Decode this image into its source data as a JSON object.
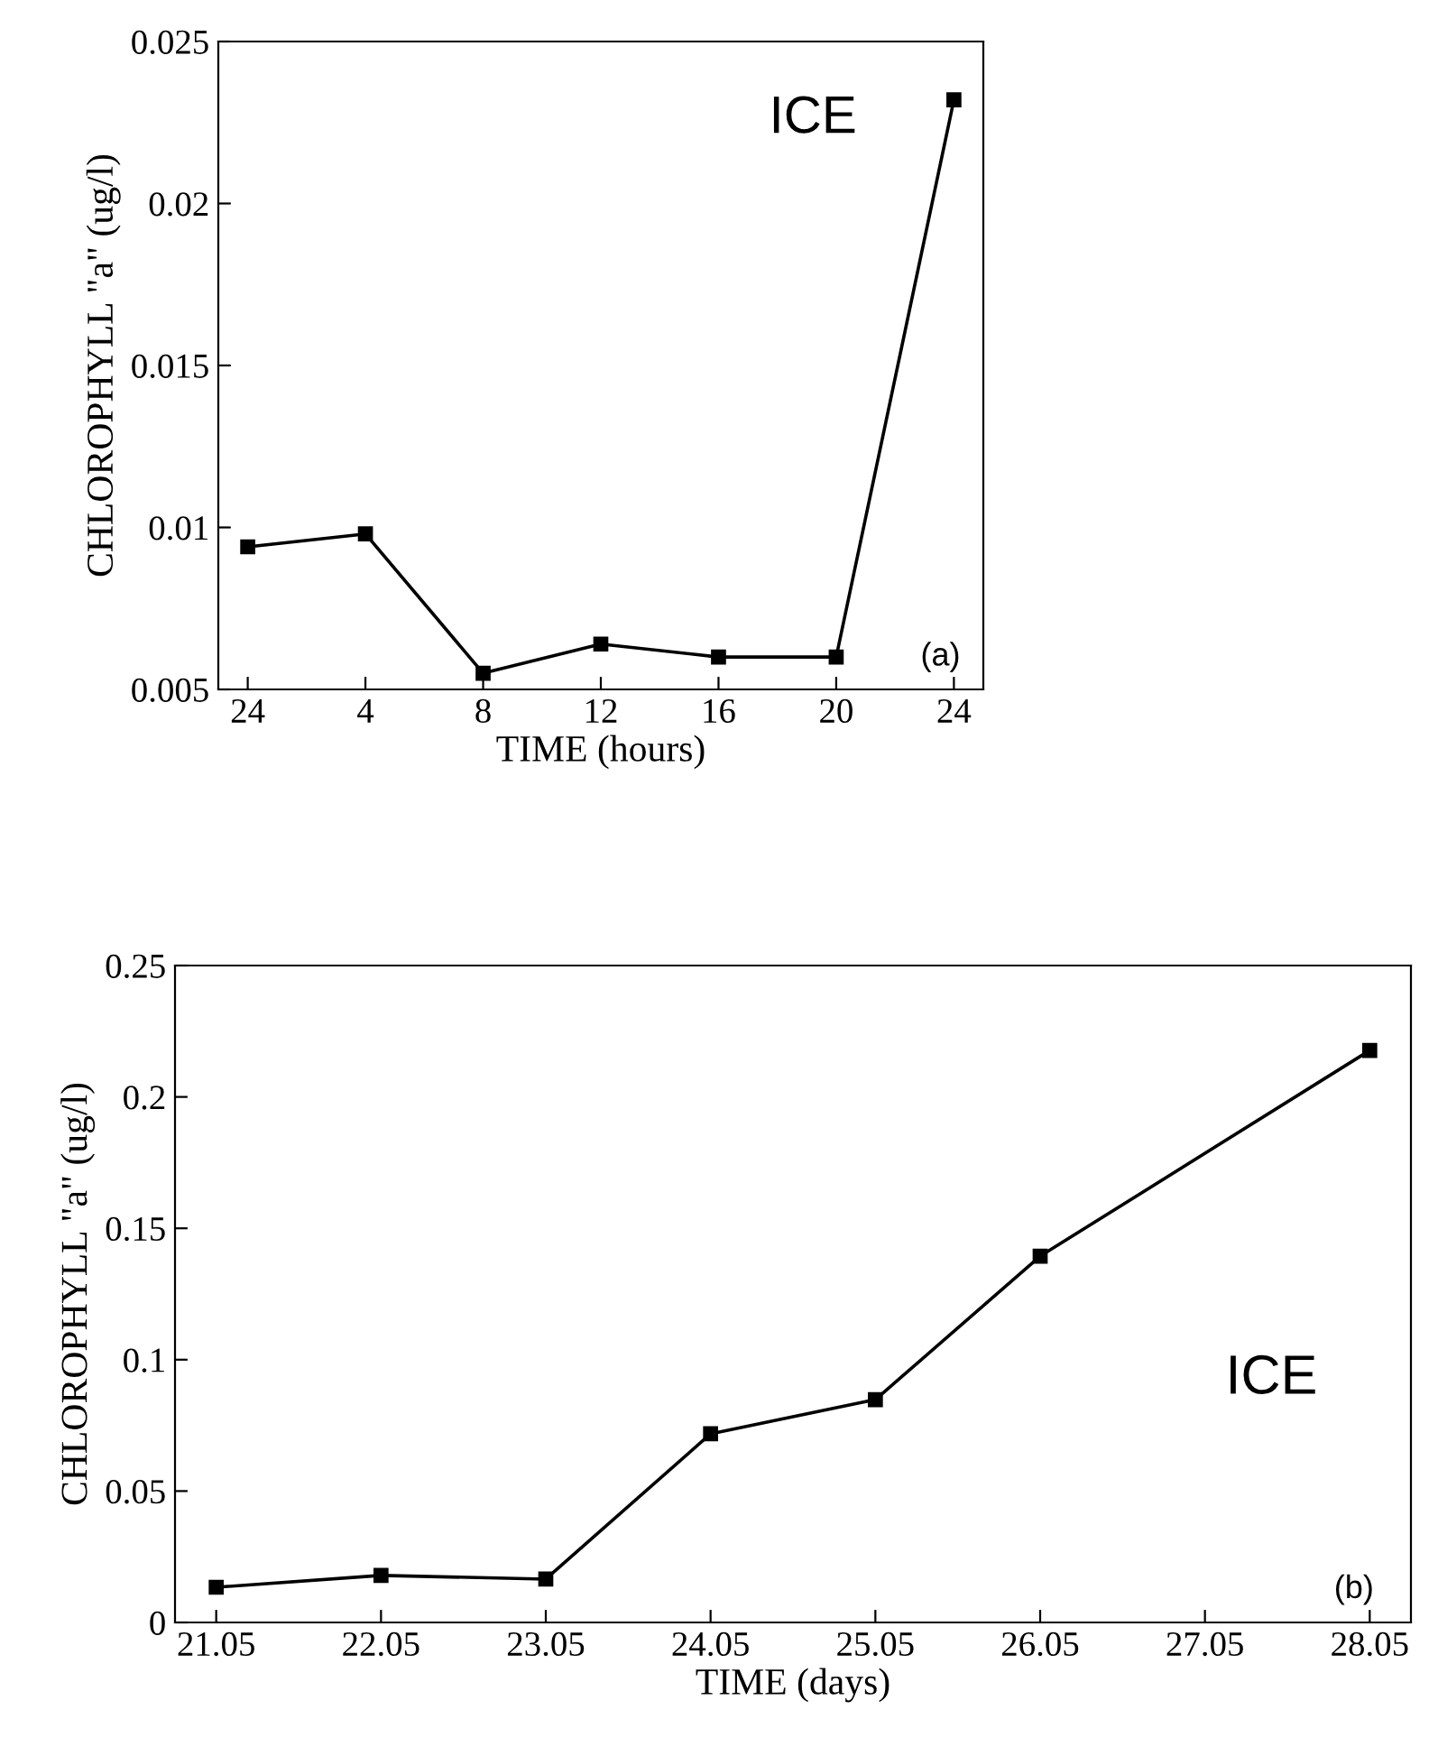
{
  "chart_data": [
    {
      "type": "line",
      "xlabel": "TIME (hours)",
      "ylabel": "CHLOROPHYLL \"a\" (ug/l)",
      "categories": [
        "24",
        "4",
        "8",
        "12",
        "16",
        "20",
        "24"
      ],
      "series": [
        {
          "color": "#000000",
          "values": [
            0.0094,
            0.0098,
            0.0055,
            0.0064,
            0.006,
            0.006,
            0.0232
          ]
        }
      ],
      "ylim": [
        0.005,
        0.025
      ],
      "yticks": [
        0.005,
        0.01,
        0.015,
        0.02,
        0.025
      ],
      "marker": "square",
      "line_style": "solid",
      "grid": false,
      "legend": false,
      "annotations": [
        "ICE",
        "(a)"
      ]
    },
    {
      "type": "line",
      "xlabel": "TIME (days)",
      "ylabel": "CHLOROPHYLL \"a\" (ug/l)",
      "categories": [
        "21.05",
        "22.05",
        "23.05",
        "24.05",
        "25.05",
        "26.05",
        "27.05",
        "28.05"
      ],
      "series": [
        {
          "color": "#000000",
          "values": [
            0.0134,
            0.0179,
            0.0165,
            0.0718,
            0.0848,
            0.1394,
            null,
            0.2177
          ]
        }
      ],
      "ylim": [
        0,
        0.25
      ],
      "yticks": [
        0,
        0.05,
        0.1,
        0.15,
        0.2,
        0.25
      ],
      "marker": "square",
      "line_style": "solid",
      "grid": false,
      "legend": false,
      "annotations": [
        "ICE",
        "(b)"
      ]
    }
  ]
}
